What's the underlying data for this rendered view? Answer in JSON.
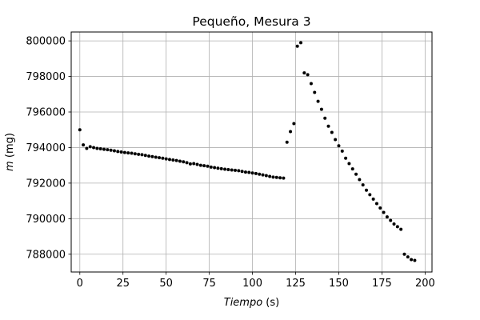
{
  "chart_data": {
    "type": "scatter",
    "title": "Pequeño, Mesura 3",
    "xlabel_var": "Tiempo",
    "xlabel_unit": " (s)",
    "ylabel_var": "m",
    "ylabel_unit": " (mg)",
    "xlim": [
      -5,
      204
    ],
    "ylim": [
      787000,
      800500
    ],
    "xticks": [
      0,
      25,
      50,
      75,
      100,
      125,
      150,
      175,
      200
    ],
    "xtick_labels": [
      "0",
      "25",
      "50",
      "75",
      "100",
      "125",
      "150",
      "175",
      "200"
    ],
    "yticks": [
      788000,
      790000,
      792000,
      794000,
      796000,
      798000,
      800000
    ],
    "ytick_labels": [
      "788000",
      "790000",
      "792000",
      "794000",
      "796000",
      "798000",
      "800000"
    ],
    "grid": true,
    "marker_color": "#000000",
    "series": [
      {
        "x": [
          0,
          2,
          4,
          6,
          8,
          10,
          12,
          14,
          16,
          18,
          20,
          22,
          24,
          26,
          28,
          30,
          32,
          34,
          36,
          38,
          40,
          42,
          44,
          46,
          48,
          50,
          52,
          54,
          56,
          58,
          60,
          62,
          64,
          66,
          68,
          70,
          72,
          74,
          76,
          78,
          80,
          82,
          84,
          86,
          88,
          90,
          92,
          94,
          96,
          98,
          100,
          102,
          104,
          106,
          108,
          110,
          112,
          114,
          116,
          118,
          120,
          122,
          124,
          126,
          128,
          130,
          132,
          134,
          136,
          138,
          140,
          142,
          144,
          146,
          148,
          150,
          152,
          154,
          156,
          158,
          160,
          162,
          164,
          166,
          168,
          170,
          172,
          174,
          176,
          178,
          180,
          182,
          184,
          186,
          188,
          190,
          192,
          194
        ],
        "y": [
          795000,
          794150,
          793950,
          794050,
          794000,
          793950,
          793930,
          793900,
          793880,
          793850,
          793820,
          793780,
          793750,
          793720,
          793700,
          793680,
          793650,
          793620,
          793600,
          793560,
          793520,
          793490,
          793460,
          793430,
          793400,
          793360,
          793330,
          793300,
          793270,
          793230,
          793200,
          793150,
          793080,
          793100,
          793050,
          793000,
          792980,
          792950,
          792900,
          792870,
          792840,
          792810,
          792780,
          792760,
          792740,
          792720,
          792700,
          792660,
          792620,
          792600,
          792570,
          792540,
          792500,
          792460,
          792420,
          792380,
          792340,
          792320,
          792300,
          792280,
          794300,
          794900,
          795350,
          799700,
          799900,
          798200,
          798100,
          797600,
          797100,
          796600,
          796150,
          795650,
          795200,
          794850,
          794450,
          794100,
          793800,
          793400,
          793100,
          792800,
          792500,
          792200,
          791900,
          791600,
          791350,
          791100,
          790850,
          790600,
          790350,
          790100,
          789900,
          789700,
          789550,
          789400,
          788000,
          787850,
          787700,
          787650
        ]
      }
    ]
  }
}
